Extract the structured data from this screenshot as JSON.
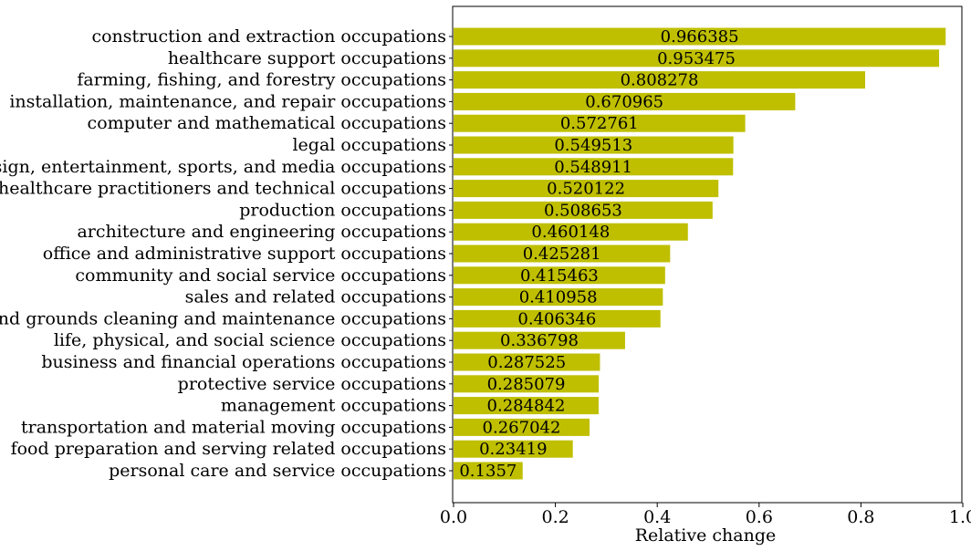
{
  "chart_data": {
    "type": "bar",
    "orientation": "horizontal",
    "title": "",
    "xlabel": "Relative change",
    "ylabel": "",
    "xlim": [
      0,
      1.0
    ],
    "xticks": [
      "0.0",
      "0.2",
      "0.4",
      "0.6",
      "0.8",
      "1.0"
    ],
    "grid": false,
    "bar_color": "#bfbf00",
    "categories": [
      "construction and extraction occupations",
      "healthcare support occupations",
      "farming, fishing, and forestry occupations",
      "installation, maintenance, and repair occupations",
      "computer and mathematical occupations",
      "legal occupations",
      "arts, design, entertainment, sports, and media occupations",
      "healthcare practitioners and technical occupations",
      "production occupations",
      "architecture and engineering occupations",
      "office and administrative support occupations",
      "community and social service occupations",
      "sales and related occupations",
      "building and grounds cleaning and maintenance occupations",
      "life, physical, and social science occupations",
      "business and financial operations occupations",
      "protective service occupations",
      "management occupations",
      "transportation and material moving occupations",
      "food preparation and serving related occupations",
      "personal care and service occupations"
    ],
    "values": [
      0.966385,
      0.953475,
      0.808278,
      0.670965,
      0.572761,
      0.549513,
      0.548911,
      0.520122,
      0.508653,
      0.460148,
      0.425281,
      0.415463,
      0.410958,
      0.406346,
      0.336798,
      0.287525,
      0.285079,
      0.284842,
      0.267042,
      0.23419,
      0.1357
    ],
    "value_labels": [
      "0.966385",
      "0.953475",
      "0.808278",
      "0.670965",
      "0.572761",
      "0.549513",
      "0.548911",
      "0.520122",
      "0.508653",
      "0.460148",
      "0.425281",
      "0.415463",
      "0.410958",
      "0.406346",
      "0.336798",
      "0.287525",
      "0.285079",
      "0.284842",
      "0.267042",
      "0.23419",
      "0.1357"
    ]
  }
}
